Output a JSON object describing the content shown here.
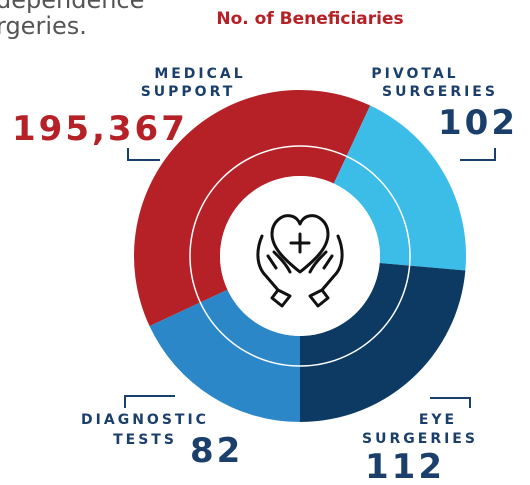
{
  "intro": {
    "lines": [
      "dependence",
      "rgeries."
    ]
  },
  "heading": "No. of Beneficiaries",
  "segments": [
    {
      "label": [
        "MEDICAL",
        "SUPPORT"
      ],
      "value": "195,367"
    },
    {
      "label": [
        "PIVOTAL",
        "SURGERIES"
      ],
      "value": "102"
    },
    {
      "label": [
        "EYE",
        "SURGERIES"
      ],
      "value": "112"
    },
    {
      "label": [
        "DIAGNOSTIC",
        "TESTS"
      ],
      "value": "82"
    }
  ]
}
